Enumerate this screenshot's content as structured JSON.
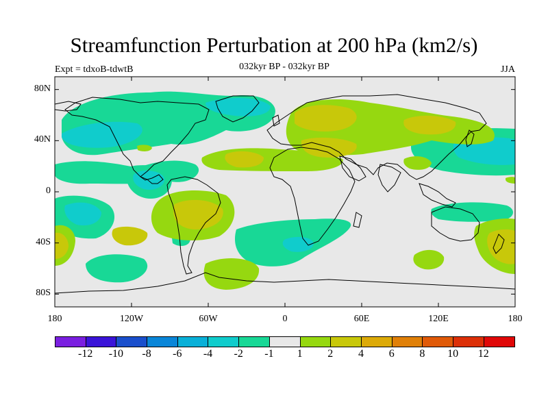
{
  "title": "Streamfunction Perturbation at 200 hPa (km2/s)",
  "subtitle_left": "Expt = tdxoB-tdwtB",
  "subtitle_center": "032kyr BP - 032kyr BP",
  "subtitle_right": "JJA",
  "y_ticks": [
    {
      "label": "80N",
      "lat": 80
    },
    {
      "label": "40N",
      "lat": 40
    },
    {
      "label": "0",
      "lat": 0
    },
    {
      "label": "40S",
      "lat": -40
    },
    {
      "label": "80S",
      "lat": -80
    }
  ],
  "x_ticks": [
    {
      "label": "180",
      "lon": -180
    },
    {
      "label": "120W",
      "lon": -120
    },
    {
      "label": "60W",
      "lon": -60
    },
    {
      "label": "0",
      "lon": 0
    },
    {
      "label": "60E",
      "lon": 60
    },
    {
      "label": "120E",
      "lon": 120
    },
    {
      "label": "180",
      "lon": 180
    }
  ],
  "colorbar": {
    "colors": [
      "#7a1fe0",
      "#3a14d8",
      "#1a4fcc",
      "#0a86d8",
      "#0ab0d8",
      "#10cccc",
      "#18d896",
      "#e8e8e8",
      "#96d810",
      "#c8c80a",
      "#dcaa08",
      "#e08008",
      "#e05a08",
      "#dc3008",
      "#e00808"
    ],
    "labels": [
      "-12",
      "-10",
      "-8",
      "-6",
      "-4",
      "-2",
      "-1",
      "1",
      "2",
      "4",
      "6",
      "8",
      "10",
      "12"
    ]
  },
  "colors": {
    "background": "#e8e8e8",
    "neg_light": "#18d896",
    "neg_mid": "#10cccc",
    "pos_light": "#96d810",
    "pos_mid": "#c8c80a",
    "coast": "#000000"
  }
}
